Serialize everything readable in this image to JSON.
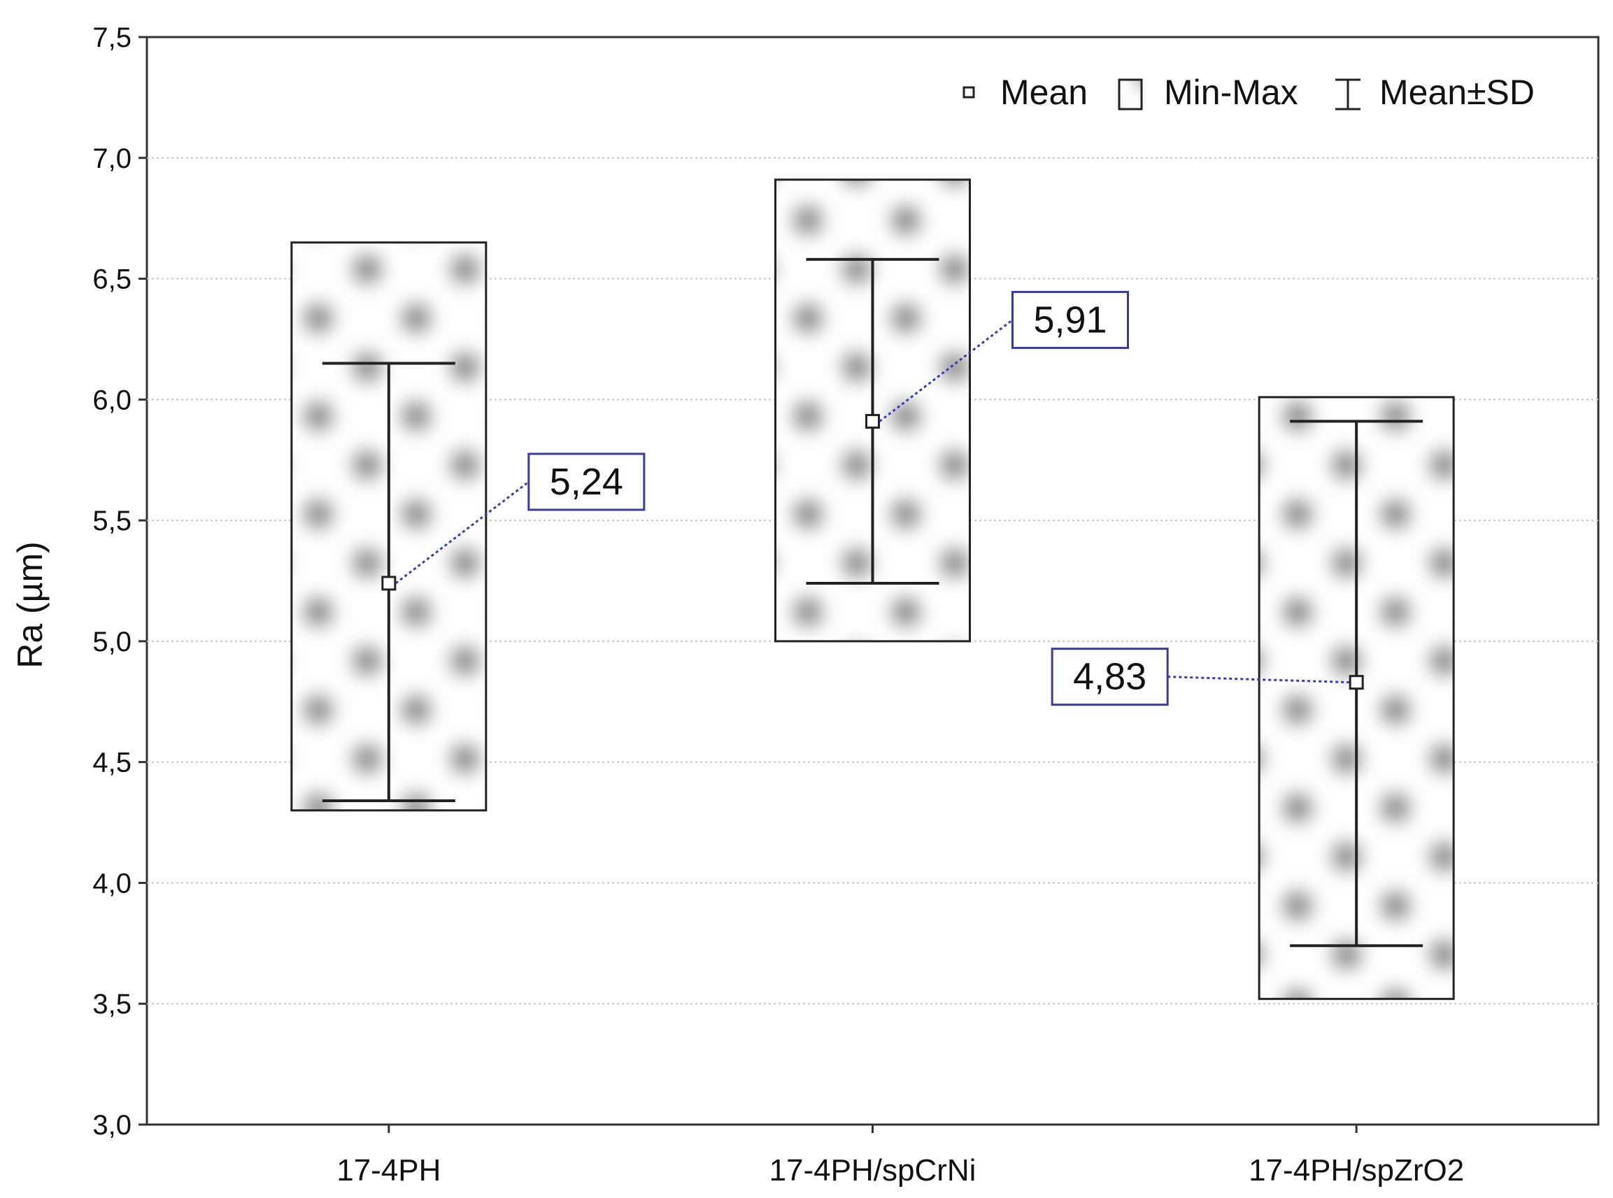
{
  "chart_data": {
    "type": "box",
    "ylabel": "Ra (µm)",
    "ylim": [
      3.0,
      7.5
    ],
    "yticks": [
      3.0,
      3.5,
      4.0,
      4.5,
      5.0,
      5.5,
      6.0,
      6.5,
      7.0,
      7.5
    ],
    "ytick_labels": [
      "3,0",
      "3,5",
      "4,0",
      "4,5",
      "5,0",
      "5,5",
      "6,0",
      "6,5",
      "7,0",
      "7,5"
    ],
    "grid": "horizontal dotted",
    "legend": {
      "placement": "top-right",
      "items": [
        {
          "label": "Mean",
          "symbol": "square-marker"
        },
        {
          "label": "Min-Max",
          "symbol": "shaded-box"
        },
        {
          "label": "Mean±SD",
          "symbol": "error-bar"
        }
      ]
    },
    "categories": [
      "17-4PH",
      "17-4PH/spCrNi",
      "17-4PH/spZrO2"
    ],
    "groups": [
      {
        "category": "17-4PH",
        "mean": 5.24,
        "min": 4.3,
        "max": 6.65,
        "sd_low": 4.34,
        "sd_high": 6.15,
        "mean_label": "5,24",
        "label_side": "right"
      },
      {
        "category": "17-4PH/spCrNi",
        "mean": 5.91,
        "min": 5.0,
        "max": 6.91,
        "sd_low": 5.24,
        "sd_high": 6.58,
        "mean_label": "5,91",
        "label_side": "right"
      },
      {
        "category": "17-4PH/spZrO2",
        "mean": 4.83,
        "min": 3.52,
        "max": 6.01,
        "sd_low": 3.74,
        "sd_high": 5.91,
        "mean_label": "4,83",
        "label_side": "left"
      }
    ],
    "colors": {
      "axis": "#333333",
      "grid": "#c8c8c8",
      "box_border": "#222222",
      "box_pattern": "#7a7a7a",
      "label_border": "#3b3b9a",
      "leader_line": "#3b3bb0",
      "text": "#111111"
    }
  }
}
